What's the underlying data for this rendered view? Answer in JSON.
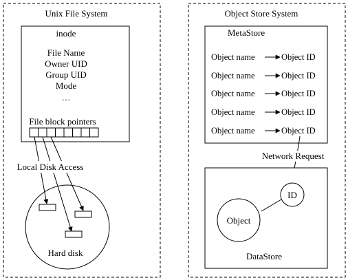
{
  "unix": {
    "title": "Unix File System",
    "inode": {
      "title": "inode",
      "fields": [
        "File Name",
        "Owner UID",
        "Group UID",
        "Mode",
        "…"
      ],
      "pointers_label": "File block pointers",
      "pointer_cell_count": 8
    },
    "disk_access_label": "Local Disk Access",
    "disk_label": "Hard disk"
  },
  "objstore": {
    "title": "Object Store System",
    "metastore": {
      "title": "MetaStore",
      "rows": [
        {
          "name": "Object name",
          "id": "Object ID"
        },
        {
          "name": "Object name",
          "id": "Object ID"
        },
        {
          "name": "Object name",
          "id": "Object ID"
        },
        {
          "name": "Object name",
          "id": "Object ID"
        },
        {
          "name": "Object name",
          "id": "Object ID"
        }
      ]
    },
    "network_label": "Network Request",
    "datastore": {
      "title": "DataStore",
      "object_label": "Object",
      "id_label": "ID"
    }
  }
}
